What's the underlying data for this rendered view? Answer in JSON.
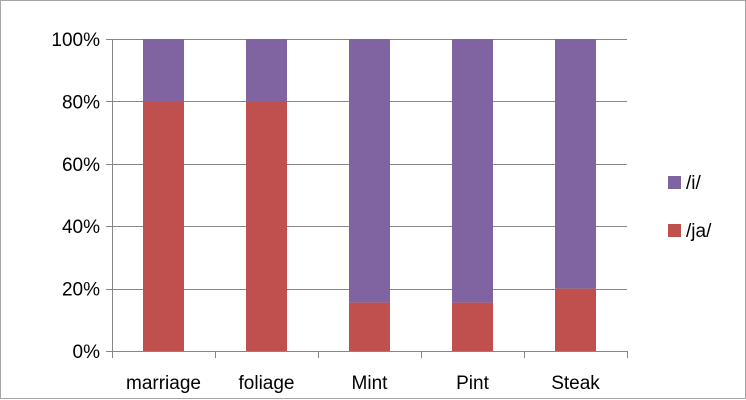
{
  "chart_data": {
    "type": "bar",
    "stacked": true,
    "percent": true,
    "categories": [
      "marriage",
      "foliage",
      "Mint",
      "Pint",
      "Steak"
    ],
    "series": [
      {
        "name": "/ja/",
        "color": "#c0504d",
        "values": [
          80,
          80,
          15.5,
          15.5,
          20
        ]
      },
      {
        "name": "/i/",
        "color": "#8064a2",
        "values": [
          20,
          20,
          84.5,
          84.5,
          80
        ]
      }
    ],
    "yticks": [
      "0%",
      "20%",
      "40%",
      "60%",
      "80%",
      "100%"
    ],
    "ylim": [
      0,
      100
    ],
    "grid": true,
    "legend_position": "right",
    "legend_order": [
      "/i/",
      "/ja/"
    ],
    "gridline_color": "#868686",
    "axis_color": "#868686"
  }
}
